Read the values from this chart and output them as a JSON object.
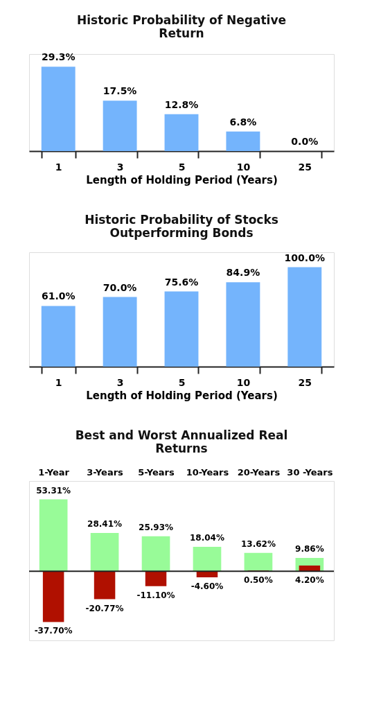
{
  "chart_data": [
    {
      "type": "bar",
      "title": "Historic Probability of Negative Return",
      "xlabel": "Length of Holding Period (Years)",
      "categories": [
        "1",
        "3",
        "5",
        "10",
        "25"
      ],
      "series": [
        {
          "color": "#74b4fc",
          "values": [
            29.3,
            17.5,
            12.8,
            6.8,
            0.0
          ],
          "value_labels": [
            "29.3%",
            "17.5%",
            "12.8%",
            "6.8%",
            "0.0%"
          ]
        }
      ]
    },
    {
      "type": "bar",
      "title": "Historic Probability of Stocks Outperforming Bonds",
      "xlabel": "Length of Holding Period (Years)",
      "categories": [
        "1",
        "3",
        "5",
        "10",
        "25"
      ],
      "series": [
        {
          "color": "#74b4fc",
          "values": [
            61.0,
            70.0,
            75.6,
            84.9,
            100.0
          ],
          "value_labels": [
            "61.0%",
            "70.0%",
            "75.6%",
            "84.9%",
            "100.0%"
          ]
        }
      ]
    },
    {
      "type": "bar",
      "title": "Best and Worst Annualized Real Returns",
      "categories": [
        "1-Year",
        "3-Years",
        "5-Years",
        "10-Years",
        "20-Years",
        "30 -Years"
      ],
      "series": [
        {
          "color": "#98fb98",
          "values": [
            53.31,
            28.41,
            25.93,
            18.04,
            13.62,
            9.86
          ],
          "value_labels": [
            "53.31%",
            "28.41%",
            "25.93%",
            "18.04%",
            "13.62%",
            "9.86%"
          ]
        },
        {
          "color": "#b01000",
          "values": [
            -37.7,
            -20.77,
            -11.1,
            -4.6,
            0.5,
            4.2
          ],
          "value_labels": [
            "-37.70%",
            "-20.77%",
            "-11.10%",
            "-4.60%",
            "0.50%",
            "4.20%"
          ]
        }
      ]
    }
  ]
}
